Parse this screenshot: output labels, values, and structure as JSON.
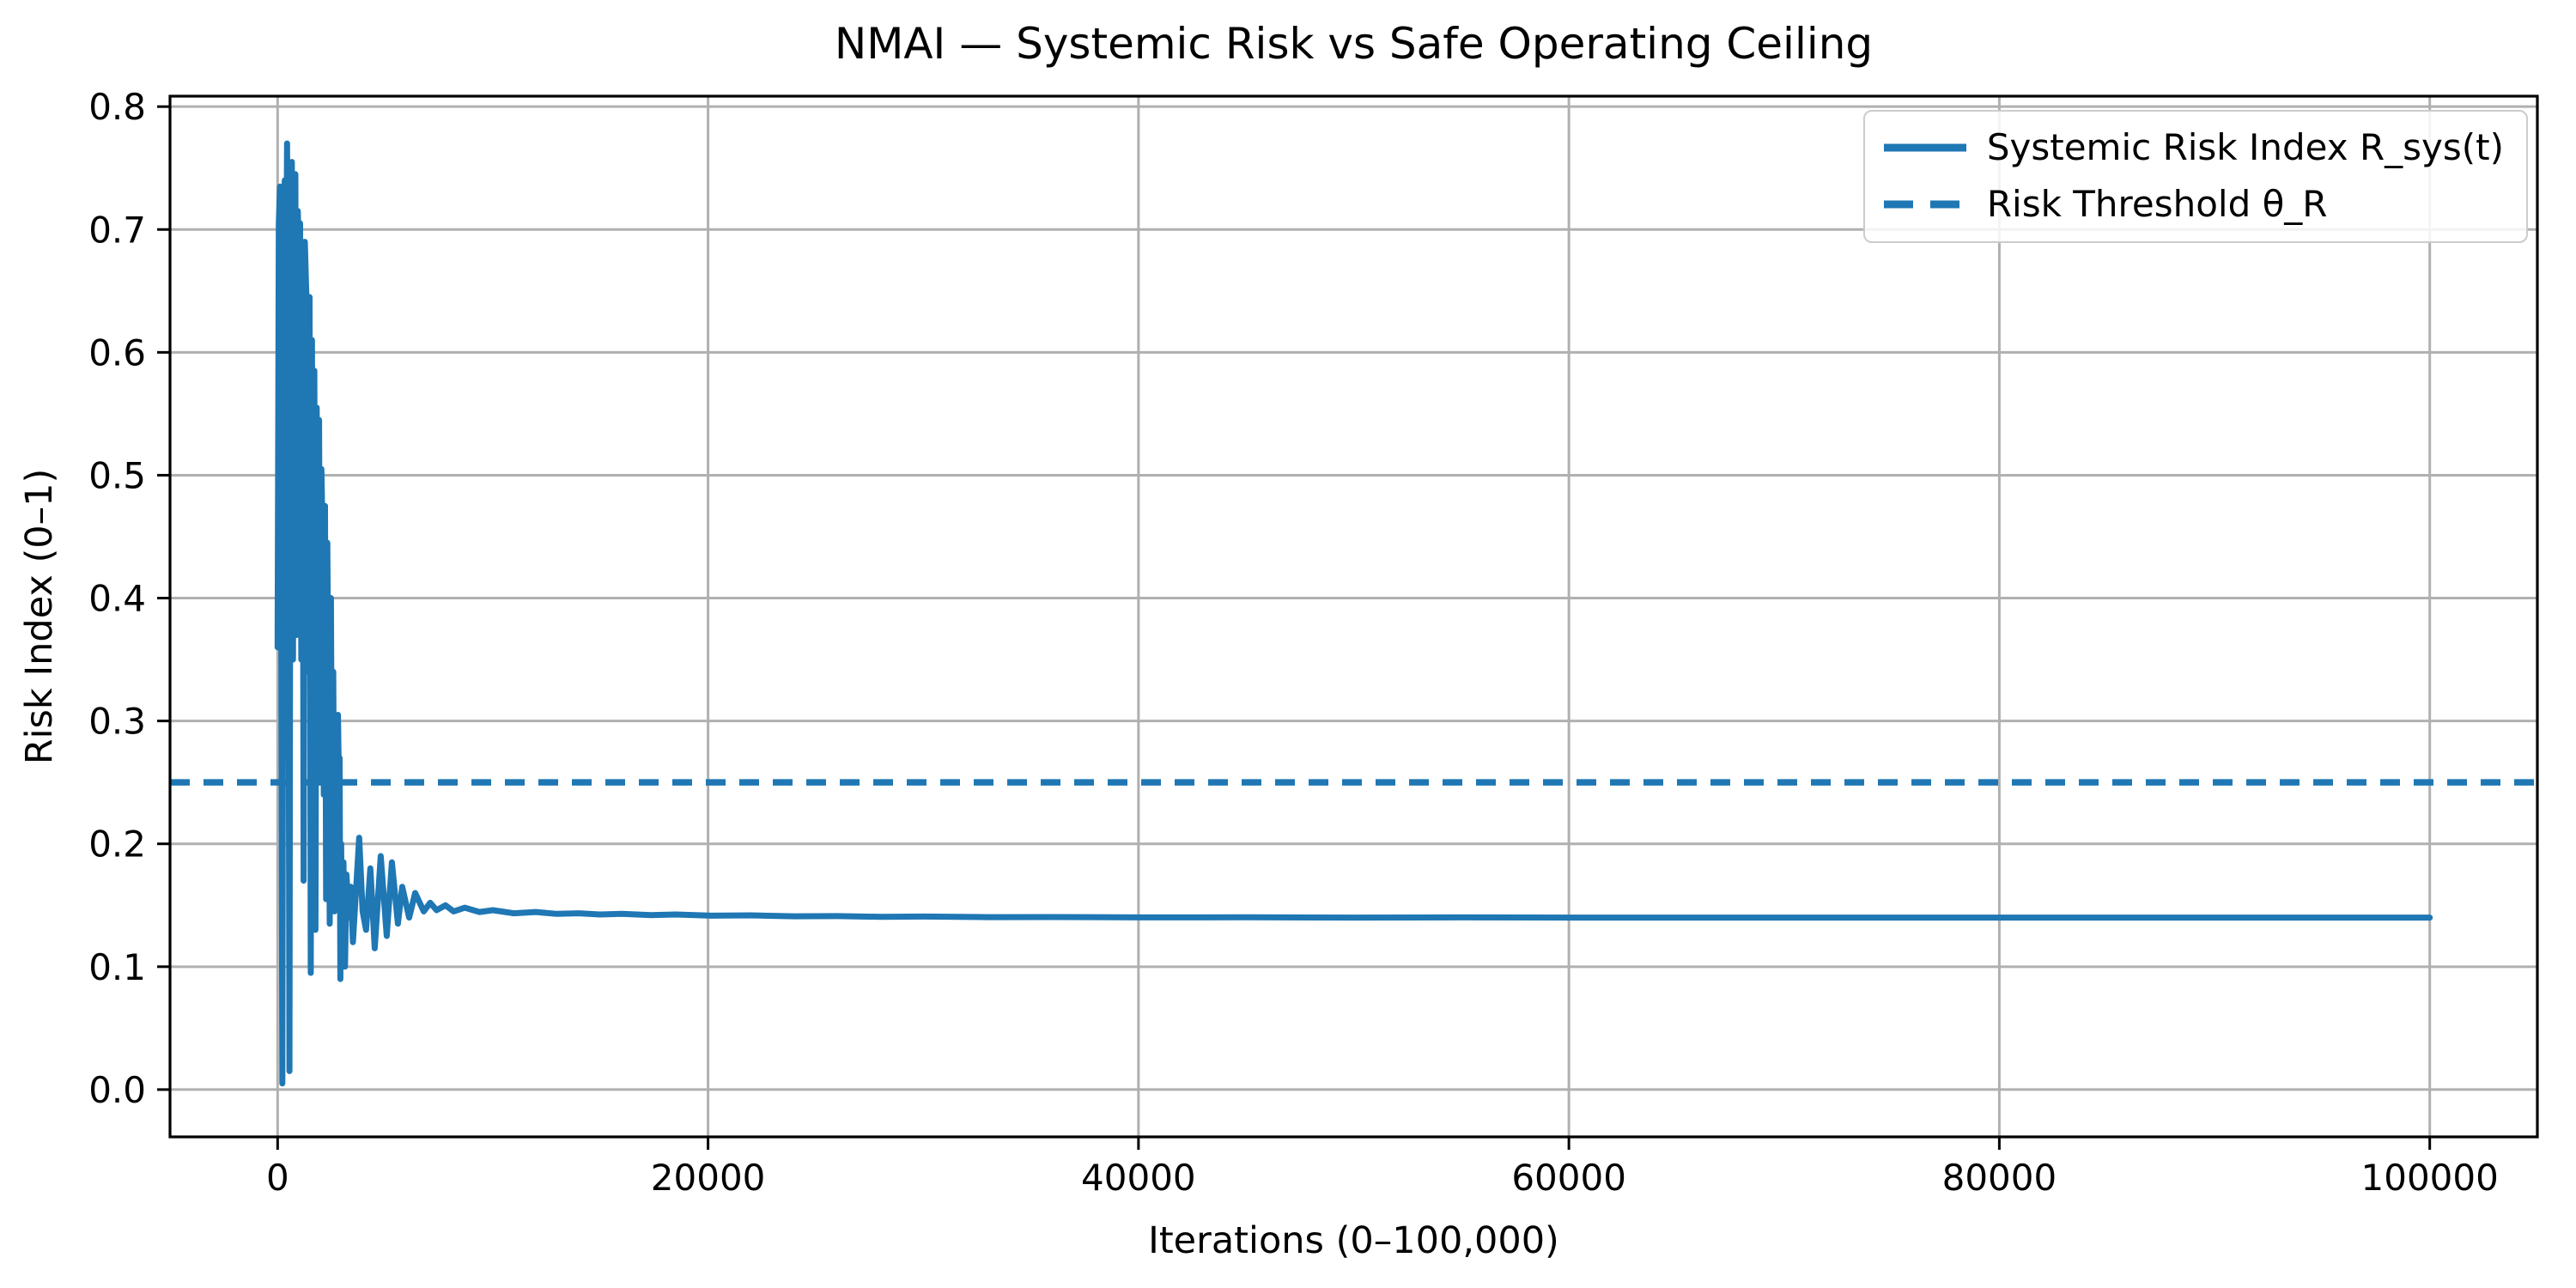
{
  "chart_data": {
    "type": "line",
    "title": "NMAI — Systemic Risk vs Safe Operating Ceiling",
    "xlabel": "Iterations (0–100,000)",
    "ylabel": "Risk Index (0–1)",
    "xlim": [
      -5000,
      105000
    ],
    "ylim": [
      -0.0385,
      0.8085
    ],
    "x_ticks": [
      0,
      20000,
      40000,
      60000,
      80000,
      100000
    ],
    "x_tick_labels": [
      "0",
      "20000",
      "40000",
      "60000",
      "80000",
      "100000"
    ],
    "y_ticks": [
      0.0,
      0.1,
      0.2,
      0.3,
      0.4,
      0.5,
      0.6,
      0.7,
      0.8
    ],
    "y_tick_labels": [
      "0.0",
      "0.1",
      "0.2",
      "0.3",
      "0.4",
      "0.5",
      "0.6",
      "0.7",
      "0.8"
    ],
    "grid": true,
    "legend_position": "upper right",
    "colors": {
      "line": "#1f77b4",
      "grid": "#b0b0b0",
      "spine": "#000000",
      "legend_border": "#cccccc"
    },
    "threshold": {
      "label": "Risk Threshold θ_R",
      "value": 0.25,
      "style": "dashed"
    },
    "series": [
      {
        "name": "Systemic Risk Index R_sys(t)",
        "style": "solid",
        "points": [
          [
            0,
            0.36
          ],
          [
            55,
            0.705
          ],
          [
            110,
            0.735
          ],
          [
            165,
            0.42
          ],
          [
            220,
            0.005
          ],
          [
            275,
            0.66
          ],
          [
            330,
            0.74
          ],
          [
            385,
            0.58
          ],
          [
            440,
            0.77
          ],
          [
            495,
            0.52
          ],
          [
            550,
            0.015
          ],
          [
            605,
            0.71
          ],
          [
            660,
            0.755
          ],
          [
            715,
            0.35
          ],
          [
            770,
            0.7
          ],
          [
            825,
            0.745
          ],
          [
            880,
            0.37
          ],
          [
            935,
            0.715
          ],
          [
            990,
            0.68
          ],
          [
            1045,
            0.705
          ],
          [
            1100,
            0.35
          ],
          [
            1155,
            0.665
          ],
          [
            1210,
            0.17
          ],
          [
            1265,
            0.69
          ],
          [
            1320,
            0.655
          ],
          [
            1375,
            0.625
          ],
          [
            1430,
            0.34
          ],
          [
            1485,
            0.645
          ],
          [
            1540,
            0.095
          ],
          [
            1595,
            0.61
          ],
          [
            1650,
            0.33
          ],
          [
            1705,
            0.585
          ],
          [
            1760,
            0.13
          ],
          [
            1815,
            0.555
          ],
          [
            1870,
            0.46
          ],
          [
            1925,
            0.545
          ],
          [
            1980,
            0.25
          ],
          [
            2035,
            0.505
          ],
          [
            2090,
            0.45
          ],
          [
            2145,
            0.24
          ],
          [
            2200,
            0.475
          ],
          [
            2255,
            0.155
          ],
          [
            2310,
            0.445
          ],
          [
            2365,
            0.3
          ],
          [
            2420,
            0.135
          ],
          [
            2475,
            0.4
          ],
          [
            2530,
            0.2
          ],
          [
            2585,
            0.34
          ],
          [
            2640,
            0.145
          ],
          [
            2695,
            0.3
          ],
          [
            2750,
            0.22
          ],
          [
            2805,
            0.305
          ],
          [
            2850,
            0.25
          ],
          [
            2880,
            0.27
          ],
          [
            2915,
            0.09
          ],
          [
            2950,
            0.2
          ],
          [
            3000,
            0.12
          ],
          [
            3060,
            0.185
          ],
          [
            3130,
            0.1
          ],
          [
            3200,
            0.175
          ],
          [
            3300,
            0.14
          ],
          [
            3400,
            0.165
          ],
          [
            3500,
            0.12
          ],
          [
            3620,
            0.155
          ],
          [
            3790,
            0.205
          ],
          [
            3950,
            0.145
          ],
          [
            4110,
            0.13
          ],
          [
            4310,
            0.18
          ],
          [
            4510,
            0.115
          ],
          [
            4790,
            0.19
          ],
          [
            5070,
            0.125
          ],
          [
            5310,
            0.185
          ],
          [
            5590,
            0.135
          ],
          [
            5790,
            0.165
          ],
          [
            6110,
            0.14
          ],
          [
            6390,
            0.16
          ],
          [
            6790,
            0.145
          ],
          [
            7090,
            0.152
          ],
          [
            7390,
            0.146
          ],
          [
            7800,
            0.15
          ],
          [
            8180,
            0.145
          ],
          [
            8700,
            0.148
          ],
          [
            9380,
            0.1445
          ],
          [
            10000,
            0.146
          ],
          [
            10980,
            0.1435
          ],
          [
            12000,
            0.1445
          ],
          [
            12970,
            0.143
          ],
          [
            14000,
            0.1435
          ],
          [
            14970,
            0.1425
          ],
          [
            16000,
            0.143
          ],
          [
            17360,
            0.142
          ],
          [
            18500,
            0.1425
          ],
          [
            20160,
            0.1415
          ],
          [
            22000,
            0.1418
          ],
          [
            24000,
            0.141
          ],
          [
            26000,
            0.1412
          ],
          [
            28000,
            0.1406
          ],
          [
            30000,
            0.1408
          ],
          [
            33000,
            0.1403
          ],
          [
            36000,
            0.1404
          ],
          [
            40000,
            0.1401
          ],
          [
            45000,
            0.1402
          ],
          [
            50000,
            0.14
          ],
          [
            55000,
            0.1401
          ],
          [
            60000,
            0.14
          ],
          [
            65000,
            0.14
          ],
          [
            70000,
            0.14
          ],
          [
            75000,
            0.14
          ],
          [
            80000,
            0.14
          ],
          [
            85000,
            0.14
          ],
          [
            90000,
            0.14
          ],
          [
            95000,
            0.14
          ],
          [
            100000,
            0.14
          ]
        ]
      }
    ]
  }
}
